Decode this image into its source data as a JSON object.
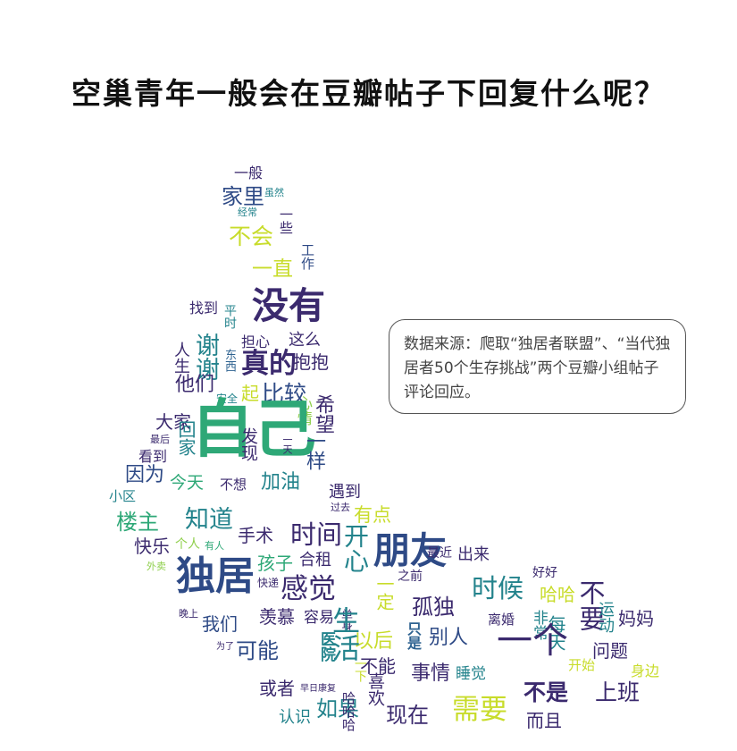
{
  "title": "空巢青年一般会在豆瓣帖子下回复什么呢？",
  "note": "数据来源：爬取“独居者联盟”、“当代独居者50个生存挑战”两个豆瓣小组帖子评论回应。",
  "colors": {
    "dark": "#3b2a6e",
    "purple": "#44327e",
    "indigo": "#2e4a86",
    "blue": "#2f6391",
    "teal": "#23838c",
    "green": "#2ea877",
    "lime": "#8fcf4c",
    "yellow": "#c8dc2b"
  },
  "words": [
    "一般",
    "家里",
    "虽然",
    "经常",
    "一些",
    "不会",
    "工作",
    "一直",
    "找到",
    "没有",
    "平时",
    "人生",
    "谢谢",
    "担心",
    "这么",
    "东西",
    "真的",
    "抱抱",
    "他们",
    "安全",
    "起",
    "比较",
    "希望",
    "心情",
    "大家",
    "最后",
    "回家",
    "自己",
    "一天",
    "发现",
    "看到",
    "一样",
    "因为",
    "今天",
    "不想",
    "加油",
    "小区",
    "遇到",
    "过去",
    "有点",
    "楼主",
    "知道",
    "快乐",
    "个人",
    "有人",
    "手术",
    "时间",
    "外卖",
    "开心",
    "朋友",
    "出来",
    "独居",
    "孩子",
    "合租",
    "之前",
    "最近",
    "好好",
    "快递",
    "感觉",
    "一定",
    "时候",
    "哈哈",
    "晚上",
    "孤独",
    "离婚",
    "妈妈",
    "羡慕",
    "容易",
    "单身",
    "非常",
    "每天",
    "不要",
    "我们",
    "为了",
    "以后",
    "运动",
    "别人",
    "问题",
    "可能",
    "医院",
    "生活",
    "只是",
    "一个",
    "开始",
    "身边",
    "一下",
    "不能",
    "事情",
    "睡觉",
    "或者",
    "早日康复",
    "如果",
    "喜欢",
    "现在",
    "需要",
    "不是",
    "上班",
    "认识",
    "哈哈哈",
    "而且"
  ]
}
